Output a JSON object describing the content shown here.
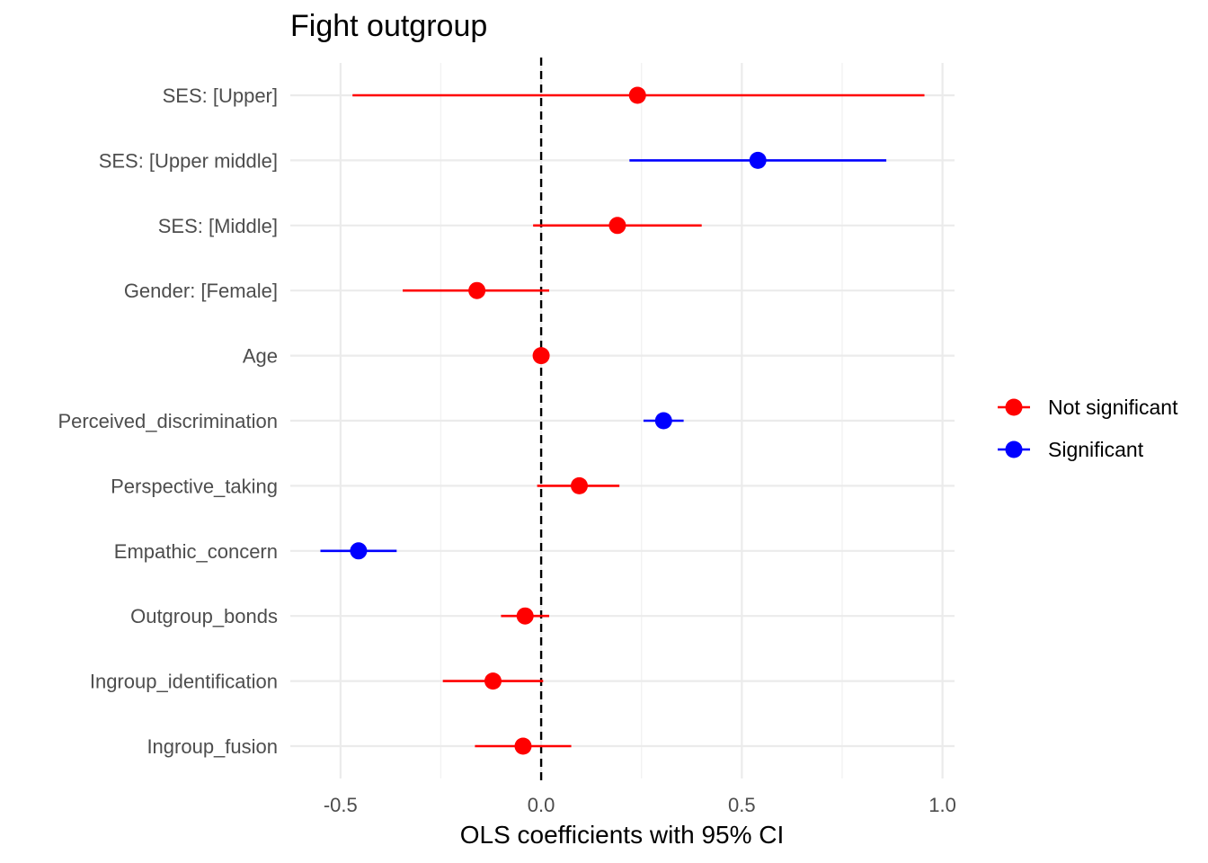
{
  "chart_data": {
    "type": "scatter",
    "title": "Fight outgroup",
    "xlabel": "OLS coefficients with 95% CI",
    "ylabel": "",
    "xlim": [
      -0.625,
      1.03
    ],
    "xticks": [
      -0.5,
      0.0,
      0.5,
      1.0
    ],
    "xtick_labels": [
      "-0.5",
      "0.0",
      "0.5",
      "1.0"
    ],
    "reference_line": 0.0,
    "grid": true,
    "legend_position": "right",
    "colors": {
      "Not significant": "#ff0000",
      "Significant": "#0000ff"
    },
    "legend": [
      {
        "label": "Not significant",
        "color": "#ff0000"
      },
      {
        "label": "Significant",
        "color": "#0000ff"
      }
    ],
    "terms": [
      {
        "label": "SES:  [Upper]",
        "estimate": 0.24,
        "low": -0.47,
        "high": 0.955,
        "group": "Not significant"
      },
      {
        "label": "SES:  [Upper middle]",
        "estimate": 0.54,
        "low": 0.22,
        "high": 0.86,
        "group": "Significant"
      },
      {
        "label": "SES:  [Middle]",
        "estimate": 0.19,
        "low": -0.02,
        "high": 0.4,
        "group": "Not significant"
      },
      {
        "label": "Gender:  [Female]",
        "estimate": -0.16,
        "low": -0.345,
        "high": 0.02,
        "group": "Not significant"
      },
      {
        "label": "Age",
        "estimate": 0.0,
        "low": -0.005,
        "high": 0.005,
        "group": "Not significant"
      },
      {
        "label": "Perceived_discrimination",
        "estimate": 0.305,
        "low": 0.255,
        "high": 0.355,
        "group": "Significant"
      },
      {
        "label": "Perspective_taking",
        "estimate": 0.095,
        "low": -0.01,
        "high": 0.195,
        "group": "Not significant"
      },
      {
        "label": "Empathic_concern",
        "estimate": -0.455,
        "low": -0.55,
        "high": -0.36,
        "group": "Significant"
      },
      {
        "label": "Outgroup_bonds",
        "estimate": -0.04,
        "low": -0.1,
        "high": 0.02,
        "group": "Not significant"
      },
      {
        "label": "Ingroup_identification",
        "estimate": -0.12,
        "low": -0.245,
        "high": 0.005,
        "group": "Not significant"
      },
      {
        "label": "Ingroup_fusion",
        "estimate": -0.045,
        "low": -0.165,
        "high": 0.075,
        "group": "Not significant"
      }
    ]
  }
}
